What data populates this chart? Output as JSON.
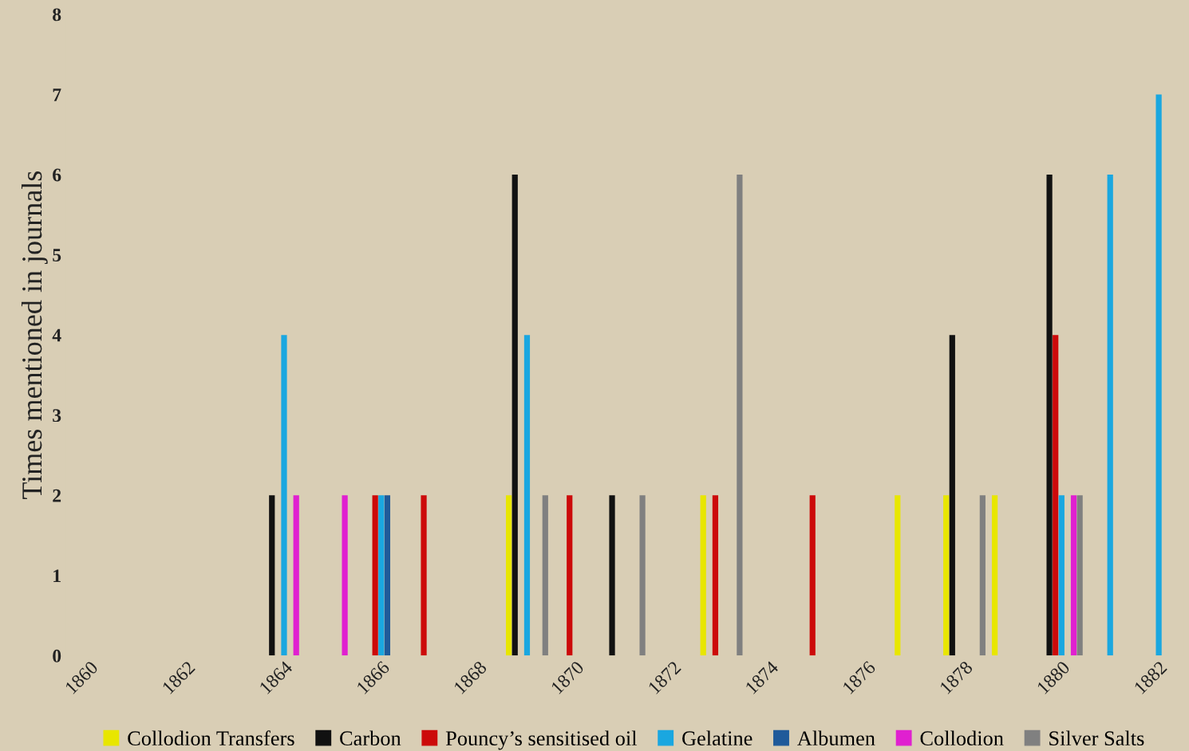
{
  "chart_data": {
    "type": "bar",
    "ylabel": "Times mentioned in journals",
    "categories": [
      "1860",
      null,
      "1862",
      null,
      "1864",
      null,
      "1866",
      null,
      "1868",
      null,
      "1870",
      null,
      "1872",
      null,
      "1874",
      null,
      "1876",
      null,
      "1878",
      null,
      "1880",
      null,
      "1882"
    ],
    "series": [
      {
        "name": "Collodion Transfers",
        "color": "#e8e600",
        "values": [
          null,
          null,
          null,
          null,
          null,
          null,
          null,
          null,
          null,
          2,
          null,
          null,
          null,
          2,
          null,
          null,
          null,
          2,
          2,
          2,
          null,
          null,
          null
        ]
      },
      {
        "name": "Carbon",
        "color": "#111111",
        "values": [
          null,
          null,
          null,
          null,
          2,
          null,
          null,
          null,
          null,
          6,
          null,
          2,
          null,
          null,
          null,
          null,
          null,
          null,
          4,
          null,
          6,
          null,
          null
        ]
      },
      {
        "name": "Pouncy’s sensitised oil",
        "color": "#cc0a0a",
        "values": [
          null,
          null,
          null,
          null,
          null,
          null,
          2,
          2,
          null,
          null,
          2,
          null,
          null,
          2,
          null,
          2,
          null,
          null,
          null,
          null,
          4,
          null,
          null
        ]
      },
      {
        "name": "Gelatine",
        "color": "#1aa7e0",
        "values": [
          null,
          null,
          null,
          null,
          4,
          null,
          2,
          null,
          null,
          4,
          null,
          null,
          null,
          null,
          null,
          null,
          null,
          null,
          null,
          null,
          2,
          6,
          7
        ]
      },
      {
        "name": "Albumen",
        "color": "#1f5a9a",
        "values": [
          null,
          null,
          null,
          null,
          null,
          null,
          2,
          null,
          null,
          null,
          null,
          null,
          null,
          null,
          null,
          null,
          null,
          null,
          null,
          null,
          null,
          null,
          null
        ]
      },
      {
        "name": "Collodion",
        "color": "#e020d0",
        "values": [
          null,
          null,
          null,
          null,
          2,
          2,
          null,
          null,
          null,
          null,
          null,
          null,
          null,
          null,
          null,
          null,
          null,
          null,
          null,
          null,
          2,
          null,
          null
        ]
      },
      {
        "name": "Silver Salts",
        "color": "#808080",
        "values": [
          null,
          null,
          null,
          null,
          null,
          null,
          null,
          null,
          null,
          2,
          null,
          2,
          null,
          6,
          null,
          null,
          null,
          null,
          2,
          null,
          2,
          null,
          null
        ]
      }
    ],
    "ylim": [
      0,
      8
    ],
    "yticks": [
      0,
      1,
      2,
      3,
      4,
      5,
      6,
      7,
      8
    ],
    "grid": false,
    "legend": "bottom"
  }
}
